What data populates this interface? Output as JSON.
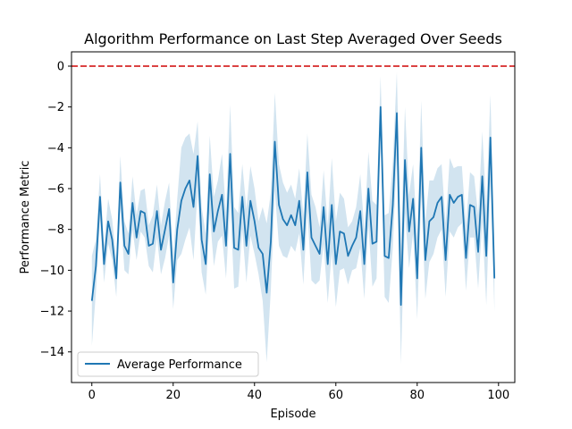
{
  "chart_data": {
    "type": "line",
    "title": "Algorithm Performance on Last Step Averaged Over Seeds",
    "xlabel": "Episode",
    "ylabel": "Performance Metric",
    "xlim": [
      -5,
      104
    ],
    "ylim": [
      -15.5,
      0.7
    ],
    "xticks": [
      0,
      20,
      40,
      60,
      80,
      100
    ],
    "yticks": [
      0,
      -2,
      -4,
      -6,
      -8,
      -10,
      -12,
      -14
    ],
    "legend_position": "lower-left",
    "reference_line": {
      "y": 0,
      "style": "dashed",
      "color": "#d62728"
    },
    "colors": {
      "line": "#1f77b4",
      "band": "#1f77b4",
      "reference": "#d62728"
    },
    "series": [
      {
        "name": "Average Performance",
        "x": [
          0,
          1,
          2,
          3,
          4,
          5,
          6,
          7,
          8,
          9,
          10,
          11,
          12,
          13,
          14,
          15,
          16,
          17,
          18,
          19,
          20,
          21,
          22,
          23,
          24,
          25,
          26,
          27,
          28,
          29,
          30,
          31,
          32,
          33,
          34,
          35,
          36,
          37,
          38,
          39,
          40,
          41,
          42,
          43,
          44,
          45,
          46,
          47,
          48,
          49,
          50,
          51,
          52,
          53,
          54,
          55,
          56,
          57,
          58,
          59,
          60,
          61,
          62,
          63,
          64,
          65,
          66,
          67,
          68,
          69,
          70,
          71,
          72,
          73,
          74,
          75,
          76,
          77,
          78,
          79,
          80,
          81,
          82,
          83,
          84,
          85,
          86,
          87,
          88,
          89,
          90,
          91,
          92,
          93,
          94,
          95,
          96,
          97,
          98,
          99
        ],
        "y": [
          -11.5,
          -9.8,
          -6.4,
          -9.7,
          -7.6,
          -8.5,
          -10.4,
          -5.7,
          -8.8,
          -9.2,
          -6.7,
          -8.4,
          -7.1,
          -7.2,
          -8.8,
          -8.7,
          -7.1,
          -9.0,
          -8.0,
          -7.0,
          -10.6,
          -8.0,
          -6.6,
          -6.0,
          -5.6,
          -6.9,
          -4.4,
          -8.5,
          -9.7,
          -5.3,
          -8.1,
          -7.1,
          -6.3,
          -8.8,
          -4.3,
          -8.9,
          -9.0,
          -6.4,
          -8.8,
          -6.6,
          -7.6,
          -8.9,
          -9.2,
          -11.1,
          -8.6,
          -3.7,
          -6.8,
          -7.5,
          -7.8,
          -7.3,
          -7.8,
          -6.6,
          -9.0,
          -5.2,
          -8.4,
          -8.8,
          -9.2,
          -6.9,
          -9.7,
          -6.8,
          -9.7,
          -8.1,
          -8.2,
          -9.3,
          -8.8,
          -8.4,
          -7.1,
          -9.7,
          -6.0,
          -8.7,
          -8.6,
          -2.0,
          -9.3,
          -9.4,
          -6.8,
          -2.3,
          -11.7,
          -4.6,
          -8.1,
          -6.5,
          -10.4,
          -4.0,
          -9.5,
          -7.6,
          -7.4,
          -6.7,
          -6.4,
          -9.5,
          -6.3,
          -6.7,
          -6.4,
          -6.3,
          -9.4,
          -6.8,
          -6.9,
          -9.1,
          -5.4,
          -9.3,
          -3.5,
          -10.4
        ],
        "std": [
          2.2,
          1.3,
          1.1,
          0.9,
          1.1,
          1.0,
          0.9,
          1.3,
          1.2,
          1.0,
          1.3,
          1.1,
          1.0,
          1.2,
          1.0,
          1.4,
          1.3,
          1.2,
          1.4,
          1.3,
          1.3,
          1.5,
          2.6,
          2.5,
          2.3,
          2.6,
          1.7,
          1.6,
          1.5,
          1.9,
          1.7,
          1.5,
          2.0,
          1.6,
          2.4,
          2.0,
          1.8,
          1.6,
          1.8,
          1.7,
          1.6,
          1.3,
          2.3,
          3.4,
          2.4,
          2.4,
          2.0,
          1.8,
          1.6,
          1.5,
          1.3,
          1.6,
          1.7,
          1.9,
          2.1,
          1.9,
          1.3,
          1.8,
          1.9,
          2.3,
          2.1,
          1.9,
          1.7,
          1.4,
          1.2,
          1.5,
          1.8,
          1.7,
          1.8,
          2.1,
          1.8,
          1.5,
          2.0,
          2.2,
          2.1,
          2.0,
          2.9,
          2.6,
          1.8,
          1.7,
          2.0,
          2.3,
          1.9,
          2.0,
          1.8,
          1.7,
          1.6,
          1.8,
          1.8,
          1.7,
          1.5,
          1.4,
          1.6,
          1.6,
          1.5,
          1.8,
          2.2,
          2.4,
          2.1,
          1.6
        ]
      }
    ]
  }
}
